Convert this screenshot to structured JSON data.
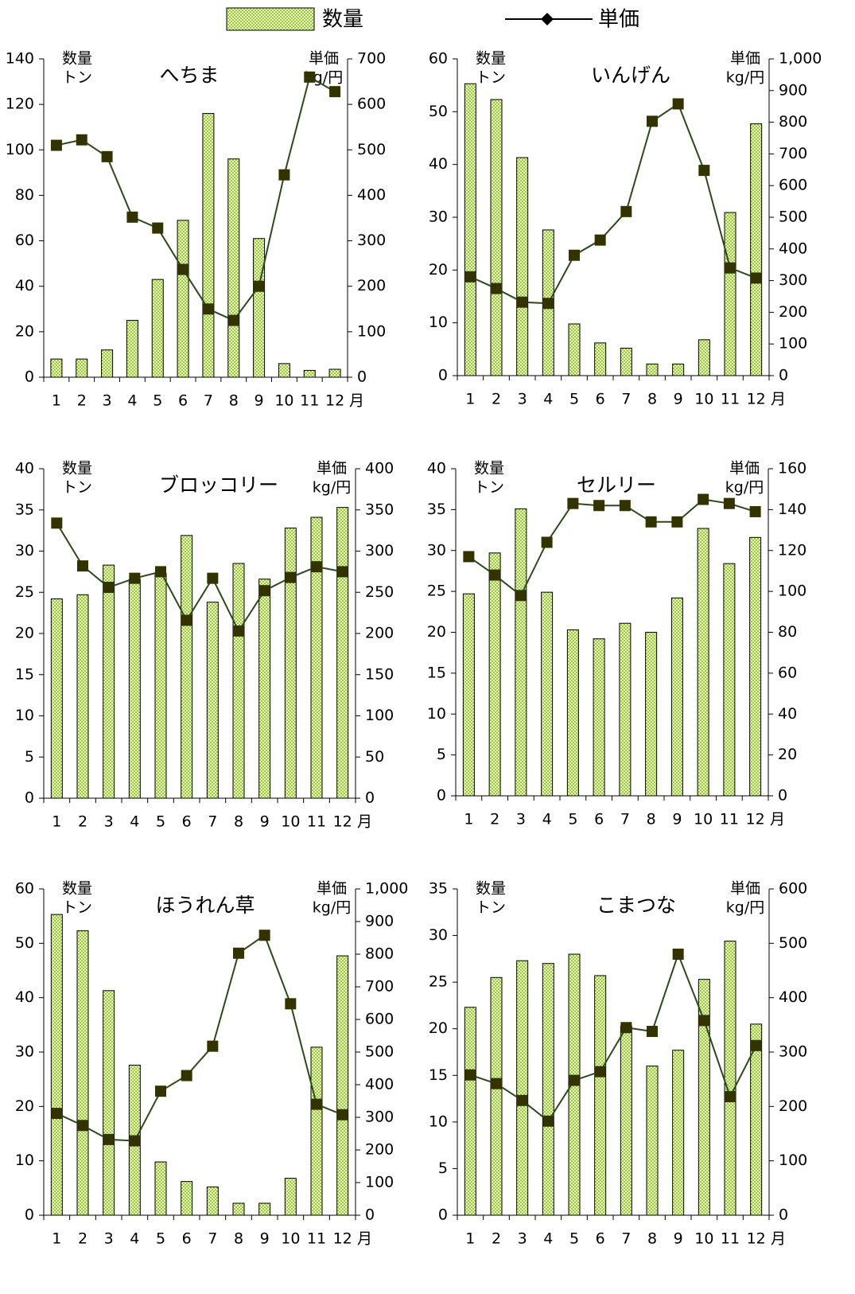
{
  "legend": [
    {
      "name": "数量",
      "color": "#a6d44a"
    },
    {
      "name": "単価",
      "color": "#000000"
    }
  ],
  "chart_data": [
    {
      "type": "combo",
      "title": "へちま",
      "ylabel": [
        "数量",
        "トン"
      ],
      "y2label": [
        "単価",
        "kg/円"
      ],
      "xunit": "月",
      "categories": [
        "1",
        "2",
        "3",
        "4",
        "5",
        "6",
        "7",
        "8",
        "9",
        "10",
        "11",
        "12"
      ],
      "ylim": [
        0,
        140
      ],
      "yticks": [
        0,
        20,
        40,
        60,
        80,
        100,
        120,
        140
      ],
      "y2lim": [
        0,
        700
      ],
      "y2ticks": [
        0,
        100,
        200,
        300,
        400,
        500,
        600,
        700
      ],
      "series": [
        {
          "values": [
            8,
            8,
            12,
            25,
            43,
            69,
            116,
            96,
            61,
            6,
            3,
            3.5
          ]
        },
        {
          "values": [
            510,
            522,
            485,
            352,
            328,
            237,
            150,
            125,
            200,
            445,
            660,
            628
          ],
          "axis": "y2"
        }
      ]
    },
    {
      "type": "combo",
      "title": "いんげん",
      "ylabel": [
        "数量",
        "トン"
      ],
      "y2label": [
        "単価",
        "kg/円"
      ],
      "xunit": "月",
      "categories": [
        "1",
        "2",
        "3",
        "4",
        "5",
        "6",
        "7",
        "8",
        "9",
        "10",
        "11",
        "12"
      ],
      "ylim": [
        0,
        60
      ],
      "yticks": [
        0,
        10,
        20,
        30,
        40,
        50,
        60
      ],
      "y2lim": [
        0,
        1000
      ],
      "y2ticks": [
        0,
        100,
        200,
        300,
        400,
        500,
        600,
        700,
        800,
        900,
        {
          "value": 1000,
          "label": "1,000"
        }
      ],
      "series": [
        {
          "values": [
            55.3,
            52.3,
            41.3,
            27.6,
            9.8,
            6.2,
            5.2,
            2.2,
            2.2,
            6.8,
            30.9,
            47.7
          ]
        },
        {
          "values": [
            312,
            275,
            232,
            228,
            380,
            428,
            518,
            803,
            858,
            648,
            340,
            308
          ],
          "axis": "y2"
        }
      ]
    },
    {
      "type": "combo",
      "title": "ブロッコリー",
      "ylabel": [
        "数量",
        "トン"
      ],
      "y2label": [
        "単価",
        "kg/円"
      ],
      "xunit": "月",
      "categories": [
        "1",
        "2",
        "3",
        "4",
        "5",
        "6",
        "7",
        "8",
        "9",
        "10",
        "11",
        "12"
      ],
      "ylim": [
        0,
        40
      ],
      "yticks": [
        0,
        5,
        10,
        15,
        20,
        25,
        30,
        35,
        40
      ],
      "y2lim": [
        0,
        400
      ],
      "y2ticks": [
        0,
        50,
        100,
        150,
        200,
        250,
        300,
        350,
        400
      ],
      "series": [
        {
          "values": [
            24.2,
            24.7,
            28.3,
            26.6,
            27.3,
            31.9,
            23.8,
            28.5,
            26.6,
            32.8,
            34.1,
            35.3
          ]
        },
        {
          "values": [
            334,
            282,
            256,
            267,
            275,
            216,
            267,
            203,
            252,
            268,
            281,
            275
          ],
          "axis": "y2"
        }
      ]
    },
    {
      "type": "combo",
      "title": "セルリー",
      "ylabel": [
        "数量",
        "トン"
      ],
      "y2label": [
        "単価",
        "kg/円"
      ],
      "xunit": "月",
      "categories": [
        "1",
        "2",
        "3",
        "4",
        "5",
        "6",
        "7",
        "8",
        "9",
        "10",
        "11",
        "12"
      ],
      "ylim": [
        0,
        40
      ],
      "yticks": [
        0,
        5,
        10,
        15,
        20,
        25,
        30,
        35,
        40
      ],
      "y2lim": [
        0,
        160
      ],
      "y2ticks": [
        0,
        20,
        40,
        60,
        80,
        100,
        120,
        140,
        160
      ],
      "series": [
        {
          "values": [
            24.7,
            29.7,
            35.1,
            24.9,
            20.3,
            19.2,
            21.1,
            20.0,
            24.2,
            32.7,
            28.4,
            31.6
          ]
        },
        {
          "values": [
            117,
            108,
            98,
            124,
            143,
            142,
            142,
            134,
            134,
            145,
            143,
            139
          ],
          "axis": "y2"
        }
      ]
    },
    {
      "type": "combo",
      "title": "ほうれん草",
      "ylabel": [
        "数量",
        "トン"
      ],
      "y2label": [
        "単価",
        "kg/円"
      ],
      "xunit": "月",
      "categories": [
        "1",
        "2",
        "3",
        "4",
        "5",
        "6",
        "7",
        "8",
        "9",
        "10",
        "11",
        "12"
      ],
      "ylim": [
        0,
        60
      ],
      "yticks": [
        0,
        10,
        20,
        30,
        40,
        50,
        60
      ],
      "y2lim": [
        0,
        1000
      ],
      "y2ticks": [
        0,
        100,
        200,
        300,
        400,
        500,
        600,
        700,
        800,
        900,
        {
          "value": 1000,
          "label": "1,000"
        }
      ],
      "series": [
        {
          "values": [
            55.3,
            52.3,
            41.3,
            27.6,
            9.8,
            6.2,
            5.2,
            2.2,
            2.2,
            6.8,
            30.9,
            47.7
          ]
        },
        {
          "values": [
            312,
            275,
            232,
            228,
            380,
            428,
            518,
            803,
            858,
            648,
            340,
            308
          ],
          "axis": "y2"
        }
      ]
    },
    {
      "type": "combo",
      "title": "こまつな",
      "ylabel": [
        "数量",
        "トン"
      ],
      "y2label": [
        "単価",
        "kg/円"
      ],
      "xunit": "月",
      "categories": [
        "1",
        "2",
        "3",
        "4",
        "5",
        "6",
        "7",
        "8",
        "9",
        "10",
        "11",
        "12"
      ],
      "ylim": [
        0,
        35
      ],
      "yticks": [
        0,
        5,
        10,
        15,
        20,
        25,
        30,
        35
      ],
      "y2lim": [
        0,
        600
      ],
      "y2ticks": [
        0,
        100,
        200,
        300,
        400,
        500,
        600
      ],
      "series": [
        {
          "values": [
            22.3,
            25.5,
            27.3,
            27.0,
            28.0,
            25.7,
            20.3,
            16.0,
            17.7,
            25.3,
            29.4,
            20.5
          ]
        },
        {
          "values": [
            258,
            242,
            211,
            173,
            248,
            264,
            345,
            338,
            480,
            358,
            218,
            312
          ],
          "axis": "y2"
        }
      ]
    }
  ]
}
